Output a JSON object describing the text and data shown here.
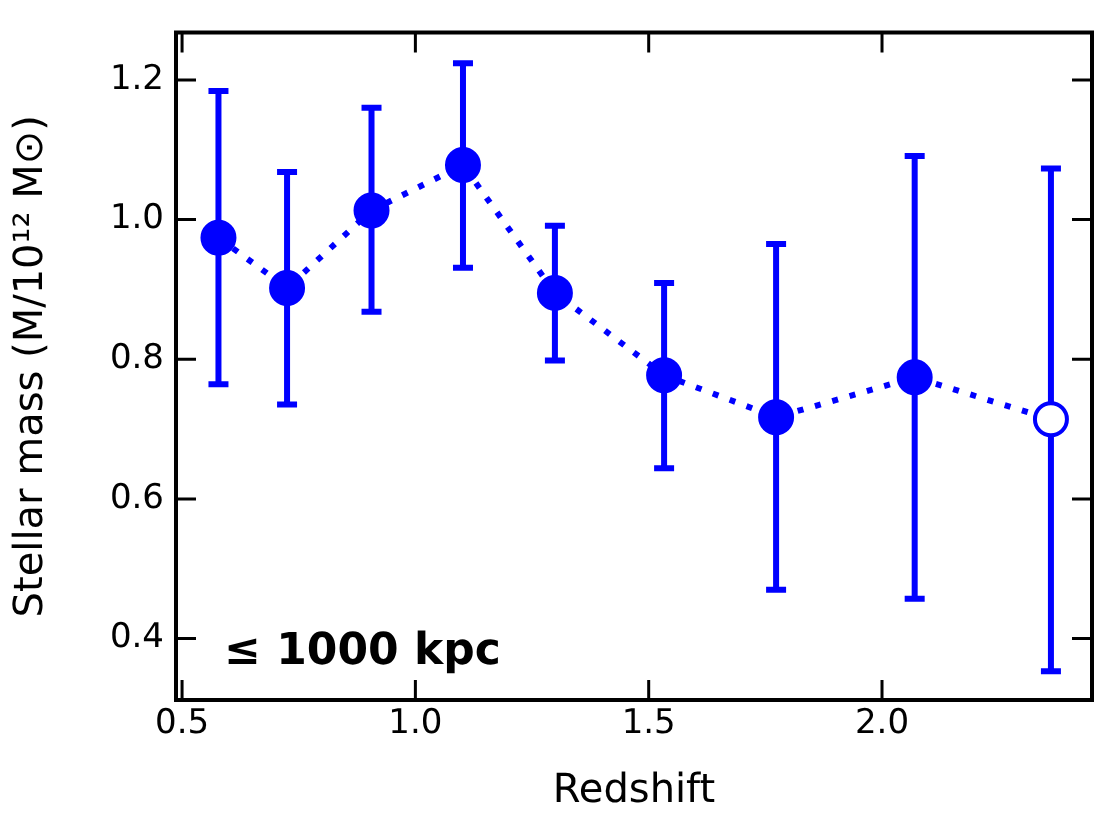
{
  "chart_data": {
    "type": "line",
    "xlabel": "Redshift",
    "ylabel": "Stellar mass (M/10¹² M⊙)",
    "x": [
      0.578,
      0.725,
      0.906,
      1.102,
      1.299,
      1.533,
      1.773,
      2.07,
      2.362
    ],
    "series": [
      {
        "color": "#0000ff",
        "colors": [
          "#0000ff",
          "#0000ff",
          "#0000ff",
          "#0000ff",
          "#0000ff",
          "#0000ff",
          "#0000ff",
          "#0000ff",
          "#ffffff"
        ],
        "values": [
          0.974,
          0.902,
          1.013,
          1.078,
          0.895,
          0.777,
          0.717,
          0.774,
          0.714
        ],
        "errors": [
          [
            0.764,
            1.184
          ],
          [
            0.735,
            1.068
          ],
          [
            0.868,
            1.16
          ],
          [
            0.931,
            1.224
          ],
          [
            0.798,
            0.991
          ],
          [
            0.644,
            0.909
          ],
          [
            0.47,
            0.965
          ],
          [
            0.457,
            1.091
          ],
          [
            0.353,
            1.073
          ]
        ]
      }
    ],
    "marker": "circle",
    "line_style": "dotted",
    "xlim": [
      0.487,
      2.45
    ],
    "xticks": [
      {
        "value": 0.5,
        "label": "0.5"
      },
      {
        "value": 1,
        "label": "1.0"
      },
      {
        "value": 1.5,
        "label": "1.5"
      },
      {
        "value": 2,
        "label": "2.0"
      }
    ],
    "ylim": [
      0.312,
      1.268
    ],
    "yticks": [
      {
        "value": 0.4,
        "label": "0.4"
      },
      {
        "value": 0.6,
        "label": "0.6"
      },
      {
        "value": 0.8,
        "label": "0.8"
      },
      {
        "value": 1,
        "label": "1.0"
      },
      {
        "value": 1.2,
        "label": "1.2"
      }
    ],
    "grid": false,
    "legend": false,
    "annotations": [
      "≤ 1000 kpc"
    ]
  }
}
